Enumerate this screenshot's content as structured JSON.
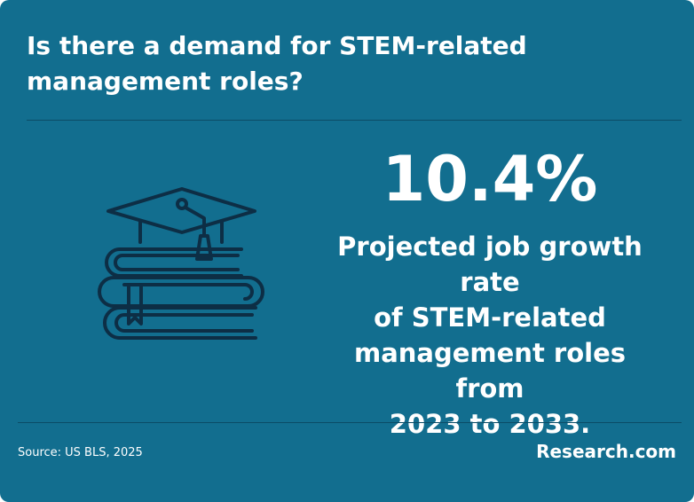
{
  "header": {
    "title": [
      "Is there a demand for STEM-related",
      "management roles?"
    ]
  },
  "stat": {
    "value": "10.4%",
    "description": [
      "Projected job growth rate",
      "of STEM-related",
      "management roles from",
      "2023 to 2033."
    ]
  },
  "footer": {
    "source": "Source: US BLS, 2025",
    "brand": "Research.com"
  }
}
